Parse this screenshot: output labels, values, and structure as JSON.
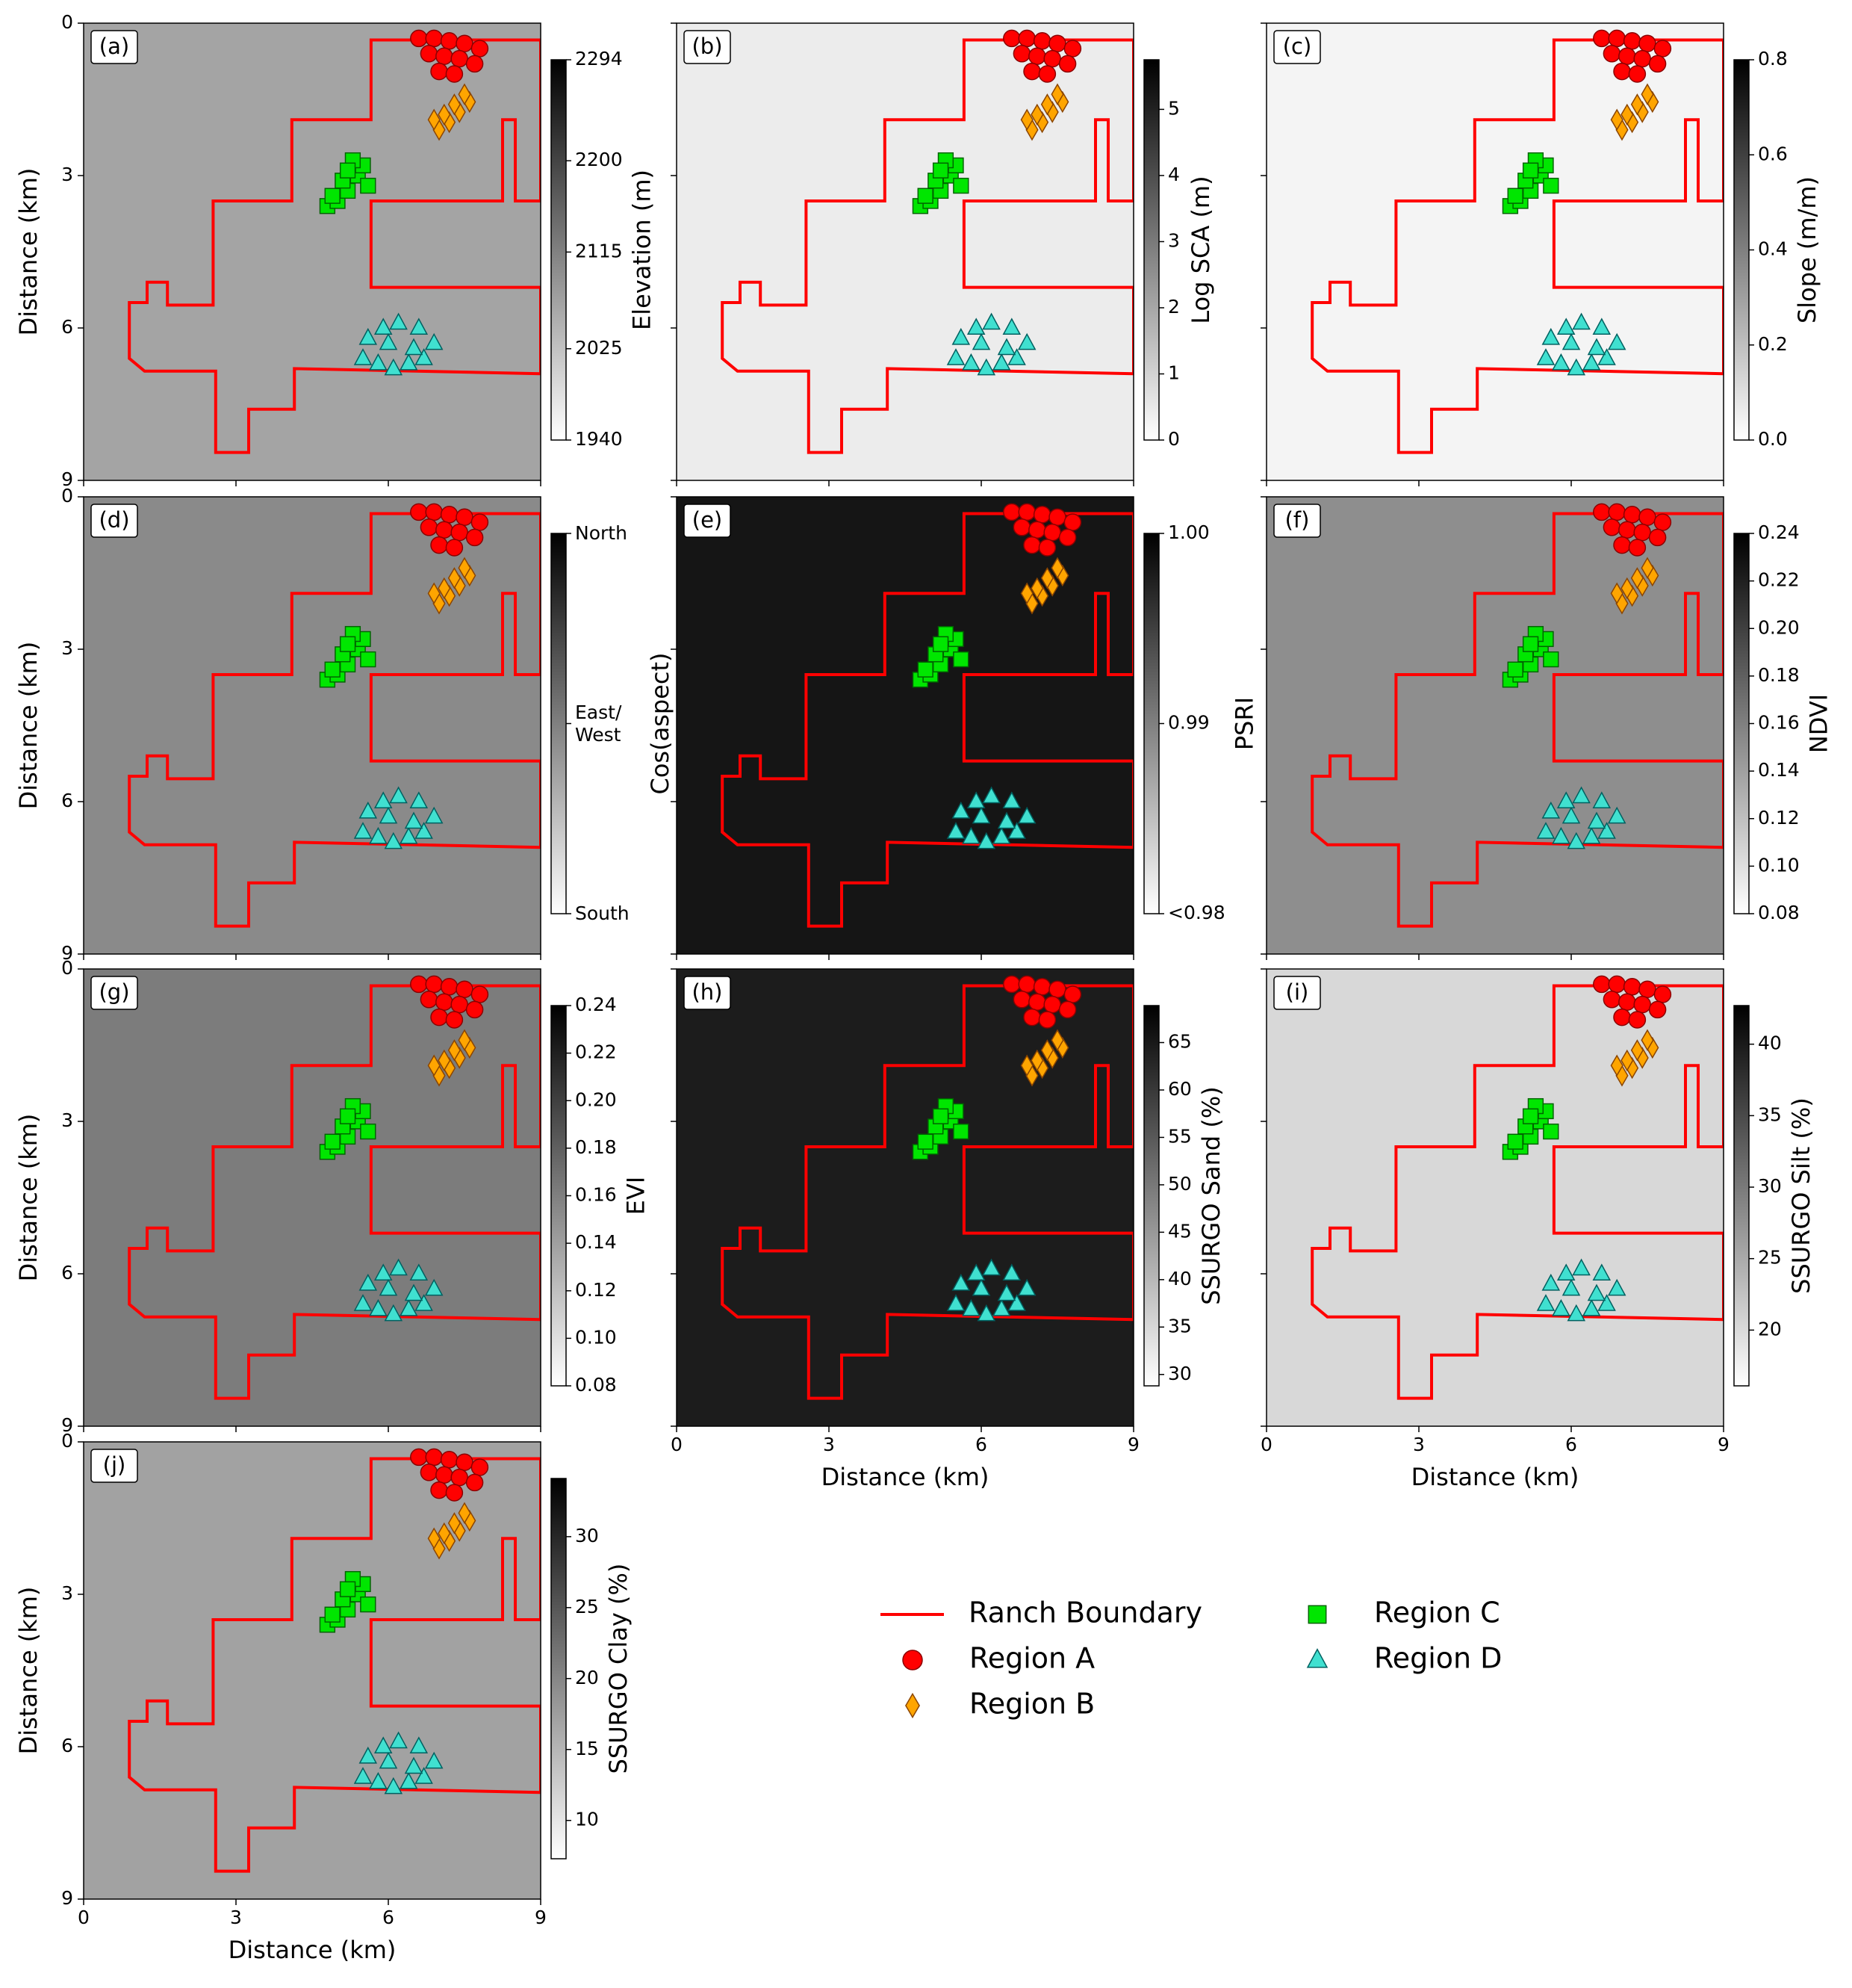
{
  "chart_data": [
    {
      "type": "map",
      "panel_label": "(a)",
      "ylabel": "Distance (km)",
      "xlim": [
        0,
        9
      ],
      "ylim": [
        0,
        9
      ],
      "y_inverted": true,
      "xticks": [
        0,
        3,
        6,
        9
      ],
      "yticks": [
        0,
        3,
        6,
        9
      ],
      "show_xtick_labels": false,
      "show_ytick_labels": true,
      "colorbar": {
        "label": "Elevation (m)",
        "lim": [
          1940,
          2294
        ],
        "ticks": [
          1940,
          2025,
          2115,
          2200,
          2294
        ]
      }
    },
    {
      "type": "map",
      "panel_label": "(b)",
      "xlim": [
        0,
        9
      ],
      "ylim": [
        0,
        9
      ],
      "y_inverted": true,
      "xticks": [
        0,
        3,
        6,
        9
      ],
      "yticks": [
        0,
        3,
        6,
        9
      ],
      "show_xtick_labels": false,
      "show_ytick_labels": false,
      "colorbar": {
        "label": "Log SCA (m)",
        "lim": [
          0,
          5.75
        ],
        "ticks": [
          0,
          1,
          2,
          3,
          4,
          5
        ]
      }
    },
    {
      "type": "map",
      "panel_label": "(c)",
      "xlim": [
        0,
        9
      ],
      "ylim": [
        0,
        9
      ],
      "y_inverted": true,
      "xticks": [
        0,
        3,
        6,
        9
      ],
      "yticks": [
        0,
        3,
        6,
        9
      ],
      "show_xtick_labels": false,
      "show_ytick_labels": false,
      "colorbar": {
        "label": "Slope (m/m)",
        "lim": [
          0,
          0.8
        ],
        "ticks": [
          {
            "value": 0,
            "label": "0.0"
          },
          0.2,
          0.4,
          0.6,
          0.8
        ]
      }
    },
    {
      "type": "map",
      "panel_label": "(d)",
      "ylabel": "Distance (km)",
      "xlim": [
        0,
        9
      ],
      "ylim": [
        0,
        9
      ],
      "y_inverted": true,
      "xticks": [
        0,
        3,
        6,
        9
      ],
      "yticks": [
        0,
        3,
        6,
        9
      ],
      "show_xtick_labels": false,
      "show_ytick_labels": true,
      "colorbar": {
        "label": "Cos(aspect)",
        "tick_texts": [
          "North",
          "East/\nWest",
          "South"
        ]
      }
    },
    {
      "type": "map",
      "panel_label": "(e)",
      "xlim": [
        0,
        9
      ],
      "ylim": [
        0,
        9
      ],
      "y_inverted": true,
      "xticks": [
        0,
        3,
        6,
        9
      ],
      "yticks": [
        0,
        3,
        6,
        9
      ],
      "show_xtick_labels": false,
      "show_ytick_labels": false,
      "colorbar": {
        "label": "PSRI",
        "lim": [
          0.98,
          1.0
        ],
        "ticks": [
          {
            "value": 0.98,
            "label": "<0.98"
          },
          0.99,
          {
            "value": 1.0,
            "label": "1.00"
          }
        ]
      }
    },
    {
      "type": "map",
      "panel_label": "(f)",
      "xlim": [
        0,
        9
      ],
      "ylim": [
        0,
        9
      ],
      "y_inverted": true,
      "xticks": [
        0,
        3,
        6,
        9
      ],
      "yticks": [
        0,
        3,
        6,
        9
      ],
      "show_xtick_labels": false,
      "show_ytick_labels": false,
      "colorbar": {
        "label": "NDVI",
        "lim": [
          0.08,
          0.24
        ],
        "ticks": [
          0.08,
          {
            "value": 0.1,
            "label": "0.10"
          },
          0.12,
          0.14,
          0.16,
          0.18,
          {
            "value": 0.2,
            "label": "0.20"
          },
          0.22,
          0.24
        ]
      }
    },
    {
      "type": "map",
      "panel_label": "(g)",
      "ylabel": "Distance (km)",
      "xlim": [
        0,
        9
      ],
      "ylim": [
        0,
        9
      ],
      "y_inverted": true,
      "xticks": [
        0,
        3,
        6,
        9
      ],
      "yticks": [
        0,
        3,
        6,
        9
      ],
      "show_xtick_labels": false,
      "show_ytick_labels": true,
      "colorbar": {
        "label": "EVI",
        "lim": [
          0.08,
          0.24
        ],
        "ticks": [
          0.08,
          {
            "value": 0.1,
            "label": "0.10"
          },
          0.12,
          0.14,
          0.16,
          0.18,
          {
            "value": 0.2,
            "label": "0.20"
          },
          0.22,
          0.24
        ]
      }
    },
    {
      "type": "map",
      "panel_label": "(h)",
      "xlabel": "Distance (km)",
      "xlim": [
        0,
        9
      ],
      "ylim": [
        0,
        9
      ],
      "y_inverted": true,
      "xticks": [
        0,
        3,
        6,
        9
      ],
      "yticks": [
        0,
        3,
        6,
        9
      ],
      "show_xtick_labels": true,
      "show_ytick_labels": false,
      "colorbar": {
        "label": "SSURGO Sand (%)",
        "lim": [
          28.8,
          68.9
        ],
        "ticks": [
          30,
          35,
          40,
          45,
          50,
          55,
          60,
          65
        ]
      }
    },
    {
      "type": "map",
      "panel_label": "(i)",
      "xlabel": "Distance (km)",
      "xlim": [
        0,
        9
      ],
      "ylim": [
        0,
        9
      ],
      "y_inverted": true,
      "xticks": [
        0,
        3,
        6,
        9
      ],
      "yticks": [
        0,
        3,
        6,
        9
      ],
      "show_xtick_labels": true,
      "show_ytick_labels": false,
      "colorbar": {
        "label": "SSURGO Silt (%)",
        "lim": [
          16.1,
          42.7
        ],
        "ticks": [
          20,
          25,
          30,
          35,
          40
        ]
      }
    },
    {
      "type": "map",
      "panel_label": "(j)",
      "xlabel": "Distance (km)",
      "ylabel": "Distance (km)",
      "xlim": [
        0,
        9
      ],
      "ylim": [
        0,
        9
      ],
      "y_inverted": true,
      "xticks": [
        0,
        3,
        6,
        9
      ],
      "yticks": [
        0,
        3,
        6,
        9
      ],
      "show_xtick_labels": true,
      "show_ytick_labels": true,
      "colorbar": {
        "label": "SSURGO Clay (%)",
        "lim": [
          7.3,
          34.1
        ],
        "ticks": [
          10,
          15,
          20,
          25,
          30
        ]
      }
    }
  ],
  "overlay": {
    "boundary": {
      "name": "Ranch Boundary",
      "color": "#ff0000",
      "x": [
        5.66,
        9,
        9,
        8.5,
        8.5,
        8.25,
        8.25,
        5.66,
        5.66,
        9,
        9,
        4.15,
        4.15,
        3.25,
        3.25,
        2.6,
        2.6,
        1.2,
        0.9,
        0.9,
        1.25,
        1.25,
        1.65,
        1.65,
        2.55,
        2.55,
        4.1,
        4.1,
        5.66
      ],
      "y": [
        0.33,
        0.33,
        3.5,
        3.5,
        1.9,
        1.9,
        3.5,
        3.5,
        5.2,
        5.2,
        6.9,
        6.8,
        7.6,
        7.6,
        8.45,
        8.45,
        6.85,
        6.85,
        6.6,
        5.5,
        5.5,
        5.1,
        5.1,
        5.55,
        5.55,
        3.5,
        3.5,
        1.9,
        1.9
      ]
    },
    "series": [
      {
        "name": "Region A",
        "marker": "circle",
        "color": "#ff0000",
        "edge": "#8b0000",
        "x": [
          6.6,
          6.9,
          7.2,
          7.5,
          7.8,
          6.8,
          7.1,
          7.4,
          7.7,
          7.0,
          7.3
        ],
        "y": [
          0.3,
          0.3,
          0.35,
          0.4,
          0.5,
          0.6,
          0.65,
          0.7,
          0.8,
          0.95,
          1.0
        ]
      },
      {
        "name": "Region B",
        "marker": "diamond",
        "color": "#ffa500",
        "edge": "#8b4500",
        "x": [
          7.0,
          7.2,
          7.4,
          7.6,
          7.1,
          7.3,
          7.5,
          6.9
        ],
        "y": [
          2.1,
          1.95,
          1.75,
          1.55,
          1.8,
          1.6,
          1.4,
          1.9
        ]
      },
      {
        "name": "Region C",
        "marker": "square",
        "color": "#00e600",
        "edge": "#006400",
        "x": [
          4.8,
          5.0,
          5.2,
          5.4,
          5.5,
          5.3,
          5.1,
          4.9,
          5.6,
          5.2
        ],
        "y": [
          3.6,
          3.5,
          3.3,
          3.0,
          2.8,
          2.7,
          3.1,
          3.4,
          3.2,
          2.9
        ]
      },
      {
        "name": "Region D",
        "marker": "triangle",
        "color": "#40e0d0",
        "edge": "#006060",
        "x": [
          5.5,
          5.8,
          6.1,
          6.4,
          6.7,
          6.9,
          6.6,
          6.2,
          5.9,
          5.6,
          6.0,
          6.5
        ],
        "y": [
          6.6,
          6.7,
          6.8,
          6.7,
          6.6,
          6.3,
          6.0,
          5.9,
          6.0,
          6.2,
          6.3,
          6.4
        ]
      }
    ]
  }
}
